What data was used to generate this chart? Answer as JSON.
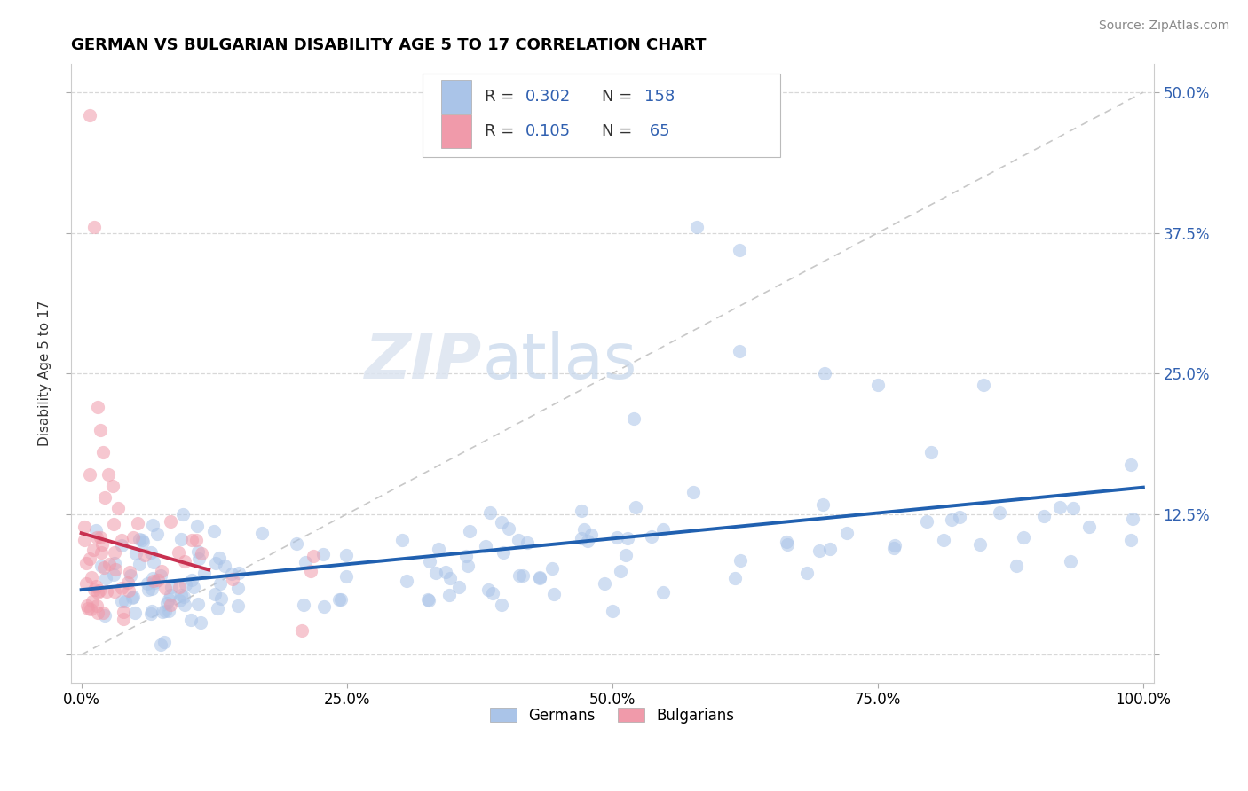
{
  "title": "GERMAN VS BULGARIAN DISABILITY AGE 5 TO 17 CORRELATION CHART",
  "source": "Source: ZipAtlas.com",
  "ylabel": "Disability Age 5 to 17",
  "xlim": [
    -0.01,
    1.01
  ],
  "ylim": [
    -0.025,
    0.525
  ],
  "xticks": [
    0.0,
    0.25,
    0.5,
    0.75,
    1.0
  ],
  "xtick_labels": [
    "0.0%",
    "25.0%",
    "50.0%",
    "75.0%",
    "100.0%"
  ],
  "yticks": [
    0.0,
    0.125,
    0.25,
    0.375,
    0.5
  ],
  "ytick_labels": [
    "",
    "12.5%",
    "25.0%",
    "37.5%",
    "50.0%"
  ],
  "german_color": "#aac4e8",
  "bulgarian_color": "#f09aaa",
  "german_line_color": "#2060b0",
  "bulgarian_line_color": "#c83050",
  "ref_line_color": "#c8c8c8",
  "grid_color": "#d8d8d8",
  "R_german": 0.302,
  "N_german": 158,
  "R_bulgarian": 0.105,
  "N_bulgarian": 65,
  "stat_color": "#3060b0",
  "watermark_zip_color": "#d0d8ee",
  "watermark_atlas_color": "#b8c8e0",
  "title_fontsize": 13,
  "source_fontsize": 10,
  "tick_fontsize": 12,
  "stat_fontsize": 13
}
